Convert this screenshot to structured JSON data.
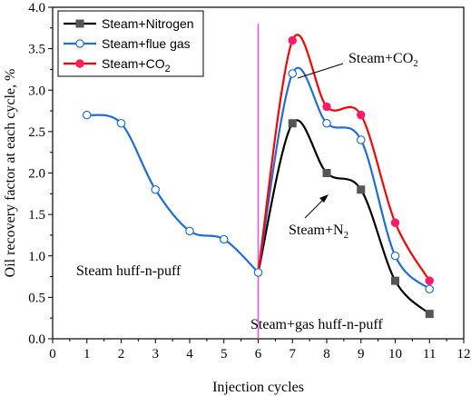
{
  "chart_data": {
    "type": "line",
    "xlabel": "Injection cycles",
    "ylabel": "Oil recovery factor at each cycle, %",
    "xlim": [
      0,
      12
    ],
    "ylim": [
      0.0,
      4.0
    ],
    "x_ticks": [
      "0",
      "1",
      "2",
      "3",
      "4",
      "5",
      "6",
      "7",
      "8",
      "9",
      "10",
      "11",
      "12"
    ],
    "y_ticks": [
      "0.0",
      "0.5",
      "1.0",
      "1.5",
      "2.0",
      "2.5",
      "3.0",
      "3.5",
      "4.0"
    ],
    "legend_position": "top-left",
    "series": [
      {
        "name": "Steam+Nitrogen",
        "color": "#000000",
        "marker": "square-filled",
        "marker_color": "#555555",
        "x": [
          1,
          2,
          3,
          4,
          5,
          6,
          7,
          8,
          9,
          10,
          11
        ],
        "y": [
          2.7,
          2.6,
          1.8,
          1.3,
          1.2,
          0.8,
          2.6,
          2.0,
          1.8,
          0.7,
          0.3
        ]
      },
      {
        "name": "Steam+flue gas",
        "color": "#1a6fdc",
        "marker": "circle-open",
        "marker_color": "#1a6fdc",
        "x": [
          6,
          7,
          8,
          9,
          10,
          11
        ],
        "y": [
          0.8,
          3.2,
          2.6,
          2.4,
          1.0,
          0.6
        ]
      },
      {
        "name_parts": [
          "Steam+CO",
          "2"
        ],
        "color": "#ff0000",
        "marker": "circle-filled",
        "marker_color": "#ff1a66",
        "x": [
          6,
          7,
          8,
          9,
          10,
          11
        ],
        "y": [
          0.8,
          3.6,
          2.8,
          2.7,
          1.4,
          0.7
        ]
      }
    ],
    "phase1_curve": {
      "color": "#1a6fdc",
      "marker": "circle-open",
      "x": [
        1,
        2,
        3,
        4,
        5,
        6
      ],
      "y": [
        2.7,
        2.6,
        1.8,
        1.3,
        1.2,
        0.8
      ]
    },
    "divider": {
      "x": 6,
      "color": "#dd55dd"
    },
    "annotations": {
      "phase1": "Steam huff-n-puff",
      "phase2": "Steam+gas huff-n-puff",
      "co2_label": [
        "Steam+CO",
        "2"
      ],
      "n2_label": [
        "Steam+N",
        "2"
      ]
    }
  }
}
